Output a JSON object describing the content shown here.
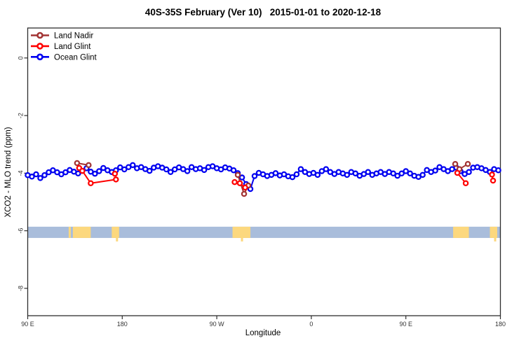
{
  "title": "40S-35S February (Ver 10)   2015-01-01 to 2020-12-18",
  "chart_data": {
    "type": "scatter",
    "title": "40S-35S February (Ver 10)   2015-01-01 to 2020-12-18",
    "xlabel": "Longitude",
    "ylabel": "XCO2 - MLO trend (ppm)",
    "x_axis": {
      "tick_labels": [
        "90 E",
        "180",
        "90 W",
        "0",
        "90 E",
        "180"
      ],
      "tick_offsets_deg": [
        0,
        90,
        180,
        270,
        360,
        450
      ],
      "span_deg": 450,
      "note": "longitude wraps eastward starting at 90E"
    },
    "y_axis": {
      "tick_labels": [
        "0",
        "-2",
        "-4",
        "-6",
        "-8"
      ],
      "tick_values": [
        0,
        -2,
        -4,
        -6,
        -8
      ],
      "range": [
        -8.95,
        1.04
      ],
      "grid": false
    },
    "legend": {
      "position": "top-left",
      "entries": [
        {
          "label": "Land Nadir",
          "color": "#A23434"
        },
        {
          "label": "Land Glint",
          "color": "#FF0000"
        },
        {
          "label": "Ocean Glint",
          "color": "#0000F0"
        }
      ]
    },
    "ocean_land_band": {
      "top_value": -5.86,
      "bottom_value": -6.25,
      "ocean_fill": "#A9BDDB",
      "land_fill": "#FCD87E",
      "land_segments_deg": [
        [
          39,
          41
        ],
        [
          43,
          60
        ],
        [
          80,
          87
        ],
        [
          195,
          212
        ],
        [
          405,
          420
        ],
        [
          440,
          447
        ]
      ],
      "land_tails_deg": [
        84,
        203,
        444
      ]
    },
    "series": [
      {
        "name": "Land Nadir",
        "color": "#A23434",
        "segments": [
          [
            [
              47,
              -3.65
            ],
            [
              58,
              -3.72
            ]
          ],
          [
            [
              200,
              -4.06
            ],
            [
              206,
              -4.72
            ],
            [
              210,
              -4.43
            ]
          ],
          [
            [
              407,
              -3.68
            ],
            [
              411,
              -3.86
            ],
            [
              419,
              -3.68
            ]
          ]
        ]
      },
      {
        "name": "Land Glint",
        "color": "#FF0000",
        "segments": [
          [
            [
              49,
              -3.82
            ],
            [
              52,
              -3.92
            ],
            [
              60,
              -4.35
            ],
            [
              84,
              -4.22
            ]
          ],
          [
            [
              83,
              -4.02
            ]
          ],
          [
            [
              197,
              -4.31
            ],
            [
              202,
              -4.35
            ],
            [
              207,
              -4.5
            ]
          ],
          [
            [
              409,
              -3.99
            ],
            [
              417,
              -4.35
            ]
          ],
          [
            [
              442,
              -4.05
            ],
            [
              443,
              -4.26
            ]
          ]
        ]
      },
      {
        "name": "Ocean Glint",
        "color": "#0000F0",
        "segments": [
          [
            [
              0,
              -4.07
            ],
            [
              4,
              -4.12
            ],
            [
              8,
              -4.04
            ],
            [
              12,
              -4.17
            ],
            [
              16,
              -4.07
            ],
            [
              20,
              -3.97
            ],
            [
              24,
              -3.9
            ],
            [
              28,
              -3.97
            ],
            [
              32,
              -4.04
            ],
            [
              36,
              -3.97
            ],
            [
              40,
              -3.89
            ],
            [
              44,
              -3.95
            ],
            [
              48,
              -4.01
            ],
            [
              52,
              -3.92
            ],
            [
              56,
              -3.83
            ],
            [
              60,
              -3.95
            ],
            [
              64,
              -4.02
            ],
            [
              68,
              -3.93
            ],
            [
              72,
              -3.82
            ],
            [
              76,
              -3.9
            ],
            [
              80,
              -3.96
            ],
            [
              84,
              -3.9
            ],
            [
              88,
              -3.8
            ],
            [
              92,
              -3.87
            ],
            [
              96,
              -3.79
            ],
            [
              100,
              -3.72
            ],
            [
              104,
              -3.83
            ],
            [
              108,
              -3.79
            ],
            [
              112,
              -3.86
            ],
            [
              116,
              -3.92
            ],
            [
              120,
              -3.81
            ],
            [
              124,
              -3.76
            ],
            [
              128,
              -3.81
            ],
            [
              132,
              -3.87
            ],
            [
              136,
              -3.96
            ],
            [
              140,
              -3.87
            ],
            [
              144,
              -3.8
            ],
            [
              148,
              -3.86
            ],
            [
              152,
              -3.93
            ],
            [
              156,
              -3.79
            ],
            [
              160,
              -3.86
            ],
            [
              164,
              -3.83
            ],
            [
              168,
              -3.89
            ],
            [
              172,
              -3.79
            ],
            [
              176,
              -3.76
            ],
            [
              180,
              -3.83
            ],
            [
              184,
              -3.87
            ],
            [
              188,
              -3.8
            ],
            [
              192,
              -3.84
            ],
            [
              196,
              -3.9
            ],
            [
              200,
              -4.0
            ],
            [
              204,
              -4.15
            ],
            [
              208,
              -4.38
            ],
            [
              212,
              -4.55
            ],
            [
              216,
              -4.1
            ],
            [
              220,
              -3.99
            ],
            [
              224,
              -4.04
            ],
            [
              228,
              -4.1
            ],
            [
              232,
              -4.06
            ],
            [
              236,
              -4.0
            ],
            [
              240,
              -4.08
            ],
            [
              244,
              -4.04
            ],
            [
              248,
              -4.11
            ],
            [
              252,
              -4.14
            ],
            [
              256,
              -4.04
            ],
            [
              260,
              -3.86
            ],
            [
              264,
              -3.96
            ],
            [
              268,
              -4.03
            ],
            [
              272,
              -3.99
            ],
            [
              276,
              -4.06
            ],
            [
              280,
              -3.93
            ],
            [
              284,
              -3.86
            ],
            [
              288,
              -3.96
            ],
            [
              292,
              -4.03
            ],
            [
              296,
              -3.96
            ],
            [
              300,
              -4.01
            ],
            [
              304,
              -4.06
            ],
            [
              308,
              -3.96
            ],
            [
              312,
              -4.01
            ],
            [
              316,
              -4.09
            ],
            [
              320,
              -4.03
            ],
            [
              324,
              -3.96
            ],
            [
              328,
              -4.06
            ],
            [
              332,
              -4.01
            ],
            [
              336,
              -3.96
            ],
            [
              340,
              -4.03
            ],
            [
              344,
              -3.96
            ],
            [
              348,
              -4.01
            ],
            [
              352,
              -4.09
            ],
            [
              356,
              -4.01
            ],
            [
              360,
              -3.93
            ],
            [
              364,
              -4.01
            ],
            [
              368,
              -4.09
            ],
            [
              372,
              -4.13
            ],
            [
              376,
              -4.06
            ],
            [
              380,
              -3.89
            ],
            [
              384,
              -3.96
            ],
            [
              388,
              -3.91
            ],
            [
              392,
              -3.79
            ],
            [
              396,
              -3.86
            ],
            [
              400,
              -3.93
            ],
            [
              404,
              -3.86
            ],
            [
              408,
              -3.81
            ],
            [
              412,
              -3.93
            ],
            [
              416,
              -4.03
            ],
            [
              420,
              -3.96
            ],
            [
              424,
              -3.81
            ],
            [
              428,
              -3.79
            ],
            [
              432,
              -3.83
            ],
            [
              436,
              -3.89
            ],
            [
              440,
              -3.96
            ],
            [
              444,
              -3.86
            ],
            [
              448,
              -3.9
            ]
          ]
        ]
      }
    ]
  }
}
